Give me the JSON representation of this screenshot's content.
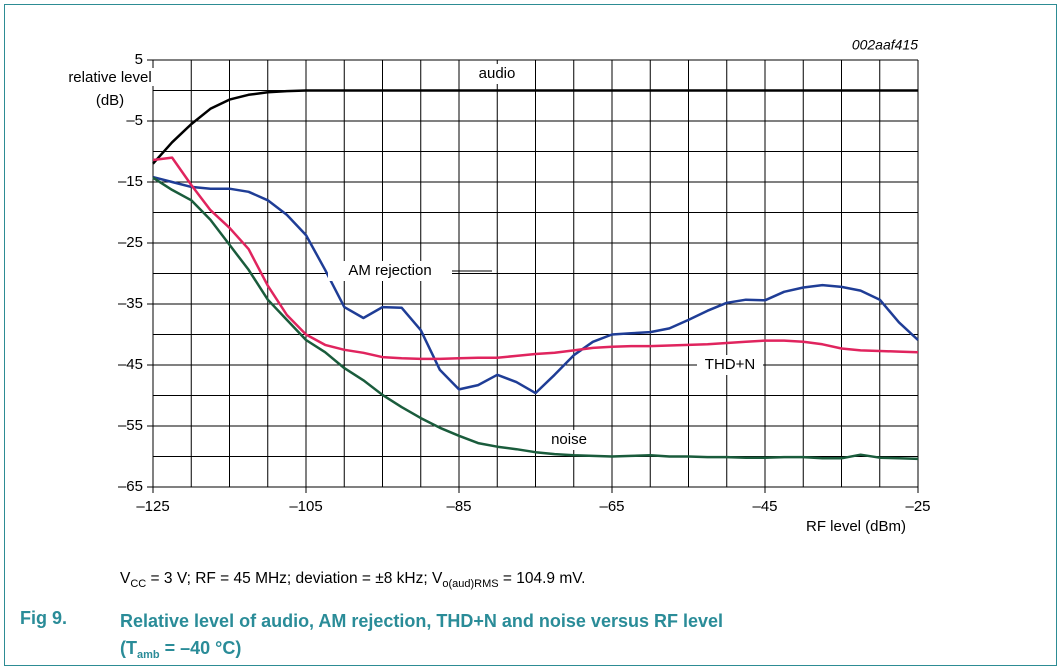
{
  "chart_data": {
    "type": "line",
    "code": "002aaf415",
    "y_label": [
      "relative level",
      "(dB)"
    ],
    "x_label": "RF level (dBm)",
    "x": [
      -125,
      -122.5,
      -120,
      -117.5,
      -115,
      -112.5,
      -110,
      -107.5,
      -105,
      -102.5,
      -100,
      -97.5,
      -95,
      -92.5,
      -90,
      -87.5,
      -85,
      -82.5,
      -80,
      -77.5,
      -75,
      -72.5,
      -70,
      -67.5,
      -65,
      -62.5,
      -60,
      -57.5,
      -55,
      -52.5,
      -50,
      -47.5,
      -45,
      -42.5,
      -40,
      -37.5,
      -35,
      -32.5,
      -30,
      -27.5,
      -25
    ],
    "series": [
      {
        "name": "audio",
        "color": "#000000",
        "values": [
          -12,
          -8.5,
          -5.5,
          -3,
          -1.5,
          -0.7,
          -0.3,
          -0.1,
          0,
          0,
          0,
          0,
          0,
          0,
          0,
          0,
          0,
          0,
          0,
          0,
          0,
          0,
          0,
          0,
          0,
          0,
          0,
          0,
          0,
          0,
          0,
          0,
          0,
          0,
          0,
          0,
          0,
          0,
          0,
          0,
          0
        ]
      },
      {
        "name": "AM rejection",
        "color": "#1f3d96",
        "values": [
          -14.2,
          -15,
          -15.8,
          -16.1,
          -16.1,
          -16.6,
          -18,
          -20.4,
          -23.7,
          -29.4,
          -35.5,
          -37.3,
          -35.5,
          -35.6,
          -39.3,
          -45.8,
          -49,
          -48.3,
          -46.6,
          -47.8,
          -49.6,
          -46.6,
          -43.4,
          -41.2,
          -40,
          -39.8,
          -39.6,
          -39,
          -37.6,
          -36.1,
          -34.8,
          -34.3,
          -34.4,
          -33,
          -32.3,
          -31.9,
          -32.2,
          -32.8,
          -34.3,
          -38,
          -40.9
        ]
      },
      {
        "name": "THD+N",
        "color": "#e0245e",
        "values": [
          -11.4,
          -11,
          -15.5,
          -19.6,
          -22.5,
          -26,
          -32,
          -36.8,
          -40,
          -41.7,
          -42.5,
          -43,
          -43.7,
          -43.9,
          -44,
          -44,
          -43.9,
          -43.8,
          -43.8,
          -43.5,
          -43.2,
          -43,
          -42.6,
          -42.2,
          -42,
          -41.9,
          -41.9,
          -41.8,
          -41.7,
          -41.6,
          -41.4,
          -41.2,
          -41,
          -41,
          -41.2,
          -41.6,
          -42.3,
          -42.6,
          -42.7,
          -42.8,
          -42.9
        ]
      },
      {
        "name": "noise",
        "color": "#1a5c3c",
        "values": [
          -14.3,
          -16.3,
          -18,
          -21.2,
          -25.3,
          -29.4,
          -34.3,
          -37.6,
          -40.9,
          -42.9,
          -45.5,
          -47.5,
          -49.9,
          -51.9,
          -53.7,
          -55.3,
          -56.6,
          -57.8,
          -58.4,
          -58.8,
          -59.3,
          -59.6,
          -59.8,
          -59.9,
          -60,
          -59.9,
          -59.8,
          -60,
          -60,
          -60.1,
          -60.1,
          -60.2,
          -60.2,
          -60.1,
          -60.1,
          -60.3,
          -60.3,
          -59.7,
          -60.2,
          -60.3,
          -60.4
        ]
      }
    ],
    "xlim": [
      -125,
      -25
    ],
    "ylim": [
      -65,
      5
    ],
    "xticks": [
      {
        "value": -125,
        "label": "–125"
      },
      {
        "value": -105,
        "label": "–105"
      },
      {
        "value": -85,
        "label": "–85"
      },
      {
        "value": -65,
        "label": "–65"
      },
      {
        "value": -45,
        "label": "–45"
      },
      {
        "value": -25,
        "label": "–25"
      }
    ],
    "yticks": [
      5,
      {
        "value": -5,
        "label": "–5"
      },
      {
        "value": -15,
        "label": "–15"
      },
      {
        "value": -25,
        "label": "–25"
      },
      {
        "value": -35,
        "label": "–35"
      },
      {
        "value": -45,
        "label": "–45"
      },
      {
        "value": -55,
        "label": "–55"
      },
      {
        "value": -65,
        "label": "–65"
      }
    ],
    "xminorticks": [
      -120,
      -115,
      -110,
      -100,
      -95,
      -90,
      -80,
      -75,
      -70,
      -60,
      -55,
      -50,
      -40,
      -35,
      -30
    ],
    "yminorticks": [
      0,
      -10,
      -20,
      -30,
      -40,
      -50,
      -60
    ],
    "grid": true
  },
  "caption": [
    "V",
    "CC",
    " = 3 V; RF = 45 MHz; deviation = ±8 kHz; V",
    "o(aud)RMS",
    " = 104.9 mV."
  ],
  "figure_number": "Fig 9.",
  "figure_title": [
    "Relative level of audio, AM rejection, THD+N and noise versus RF level",
    "(T",
    "amb",
    " = –40 °C)"
  ]
}
